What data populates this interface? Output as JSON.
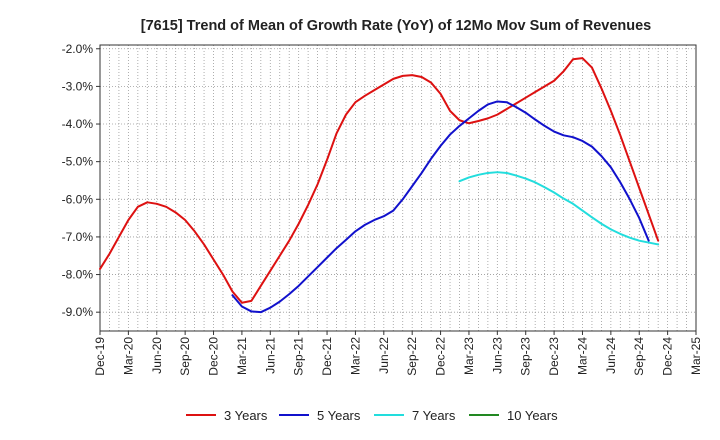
{
  "chart_data": {
    "type": "line",
    "title": "[7615]  Trend of Mean of Growth Rate (YoY) of 12Mo Mov Sum of Revenues",
    "xlabel": "",
    "ylabel": "",
    "ylim": [
      -9.5,
      -1.9
    ],
    "yticks": [
      -9.0,
      -8.0,
      -7.0,
      -6.0,
      -5.0,
      -4.0,
      -3.0,
      -2.0
    ],
    "ytick_labels": [
      "-9.0%",
      "-8.0%",
      "-7.0%",
      "-6.0%",
      "-5.0%",
      "-4.0%",
      "-3.0%",
      "-2.0%"
    ],
    "x_tick_labels": [
      "Dec-19",
      "Mar-20",
      "Jun-20",
      "Sep-20",
      "Dec-20",
      "Mar-21",
      "Jun-21",
      "Sep-21",
      "Dec-21",
      "Mar-22",
      "Jun-22",
      "Sep-22",
      "Dec-22",
      "Mar-23",
      "Jun-23",
      "Sep-23",
      "Dec-23",
      "Mar-24",
      "Jun-24",
      "Sep-24",
      "Dec-24",
      "Mar-25"
    ],
    "x_start": "Dec-19",
    "x_months": 63,
    "grid": true,
    "legend_position": "bottom",
    "series": [
      {
        "name": "3 Years",
        "color": "#dd1111",
        "start_index": 0,
        "values": [
          -7.85,
          -7.45,
          -7.0,
          -6.55,
          -6.2,
          -6.08,
          -6.12,
          -6.2,
          -6.35,
          -6.55,
          -6.85,
          -7.2,
          -7.6,
          -8.0,
          -8.45,
          -8.75,
          -8.7,
          -8.3,
          -7.9,
          -7.5,
          -7.1,
          -6.65,
          -6.15,
          -5.6,
          -4.95,
          -4.25,
          -3.75,
          -3.42,
          -3.25,
          -3.1,
          -2.95,
          -2.8,
          -2.72,
          -2.7,
          -2.75,
          -2.9,
          -3.2,
          -3.65,
          -3.9,
          -3.98,
          -3.92,
          -3.85,
          -3.75,
          -3.6,
          -3.45,
          -3.3,
          -3.15,
          -3.0,
          -2.85,
          -2.6,
          -2.28,
          -2.25,
          -2.5,
          -3.05,
          -3.65,
          -4.3,
          -5.0,
          -5.7,
          -6.4,
          -7.1
        ]
      },
      {
        "name": "5 Years",
        "color": "#1111cc",
        "start_index": 14,
        "values": [
          -8.55,
          -8.85,
          -8.98,
          -9.0,
          -8.88,
          -8.72,
          -8.52,
          -8.3,
          -8.05,
          -7.8,
          -7.55,
          -7.3,
          -7.08,
          -6.85,
          -6.68,
          -6.55,
          -6.45,
          -6.3,
          -6.0,
          -5.65,
          -5.3,
          -4.92,
          -4.58,
          -4.28,
          -4.05,
          -3.85,
          -3.65,
          -3.48,
          -3.4,
          -3.42,
          -3.55,
          -3.7,
          -3.88,
          -4.05,
          -4.2,
          -4.3,
          -4.35,
          -4.45,
          -4.6,
          -4.85,
          -5.15,
          -5.55,
          -6.0,
          -6.5,
          -7.1
        ]
      },
      {
        "name": "7 Years",
        "color": "#22dddd",
        "start_index": 38,
        "values": [
          -5.52,
          -5.42,
          -5.35,
          -5.3,
          -5.28,
          -5.3,
          -5.37,
          -5.45,
          -5.55,
          -5.68,
          -5.82,
          -5.98,
          -6.12,
          -6.3,
          -6.48,
          -6.65,
          -6.8,
          -6.92,
          -7.02,
          -7.1,
          -7.15,
          -7.2
        ]
      },
      {
        "name": "10 Years",
        "color": "#228822",
        "start_index": 0,
        "values": []
      }
    ]
  }
}
